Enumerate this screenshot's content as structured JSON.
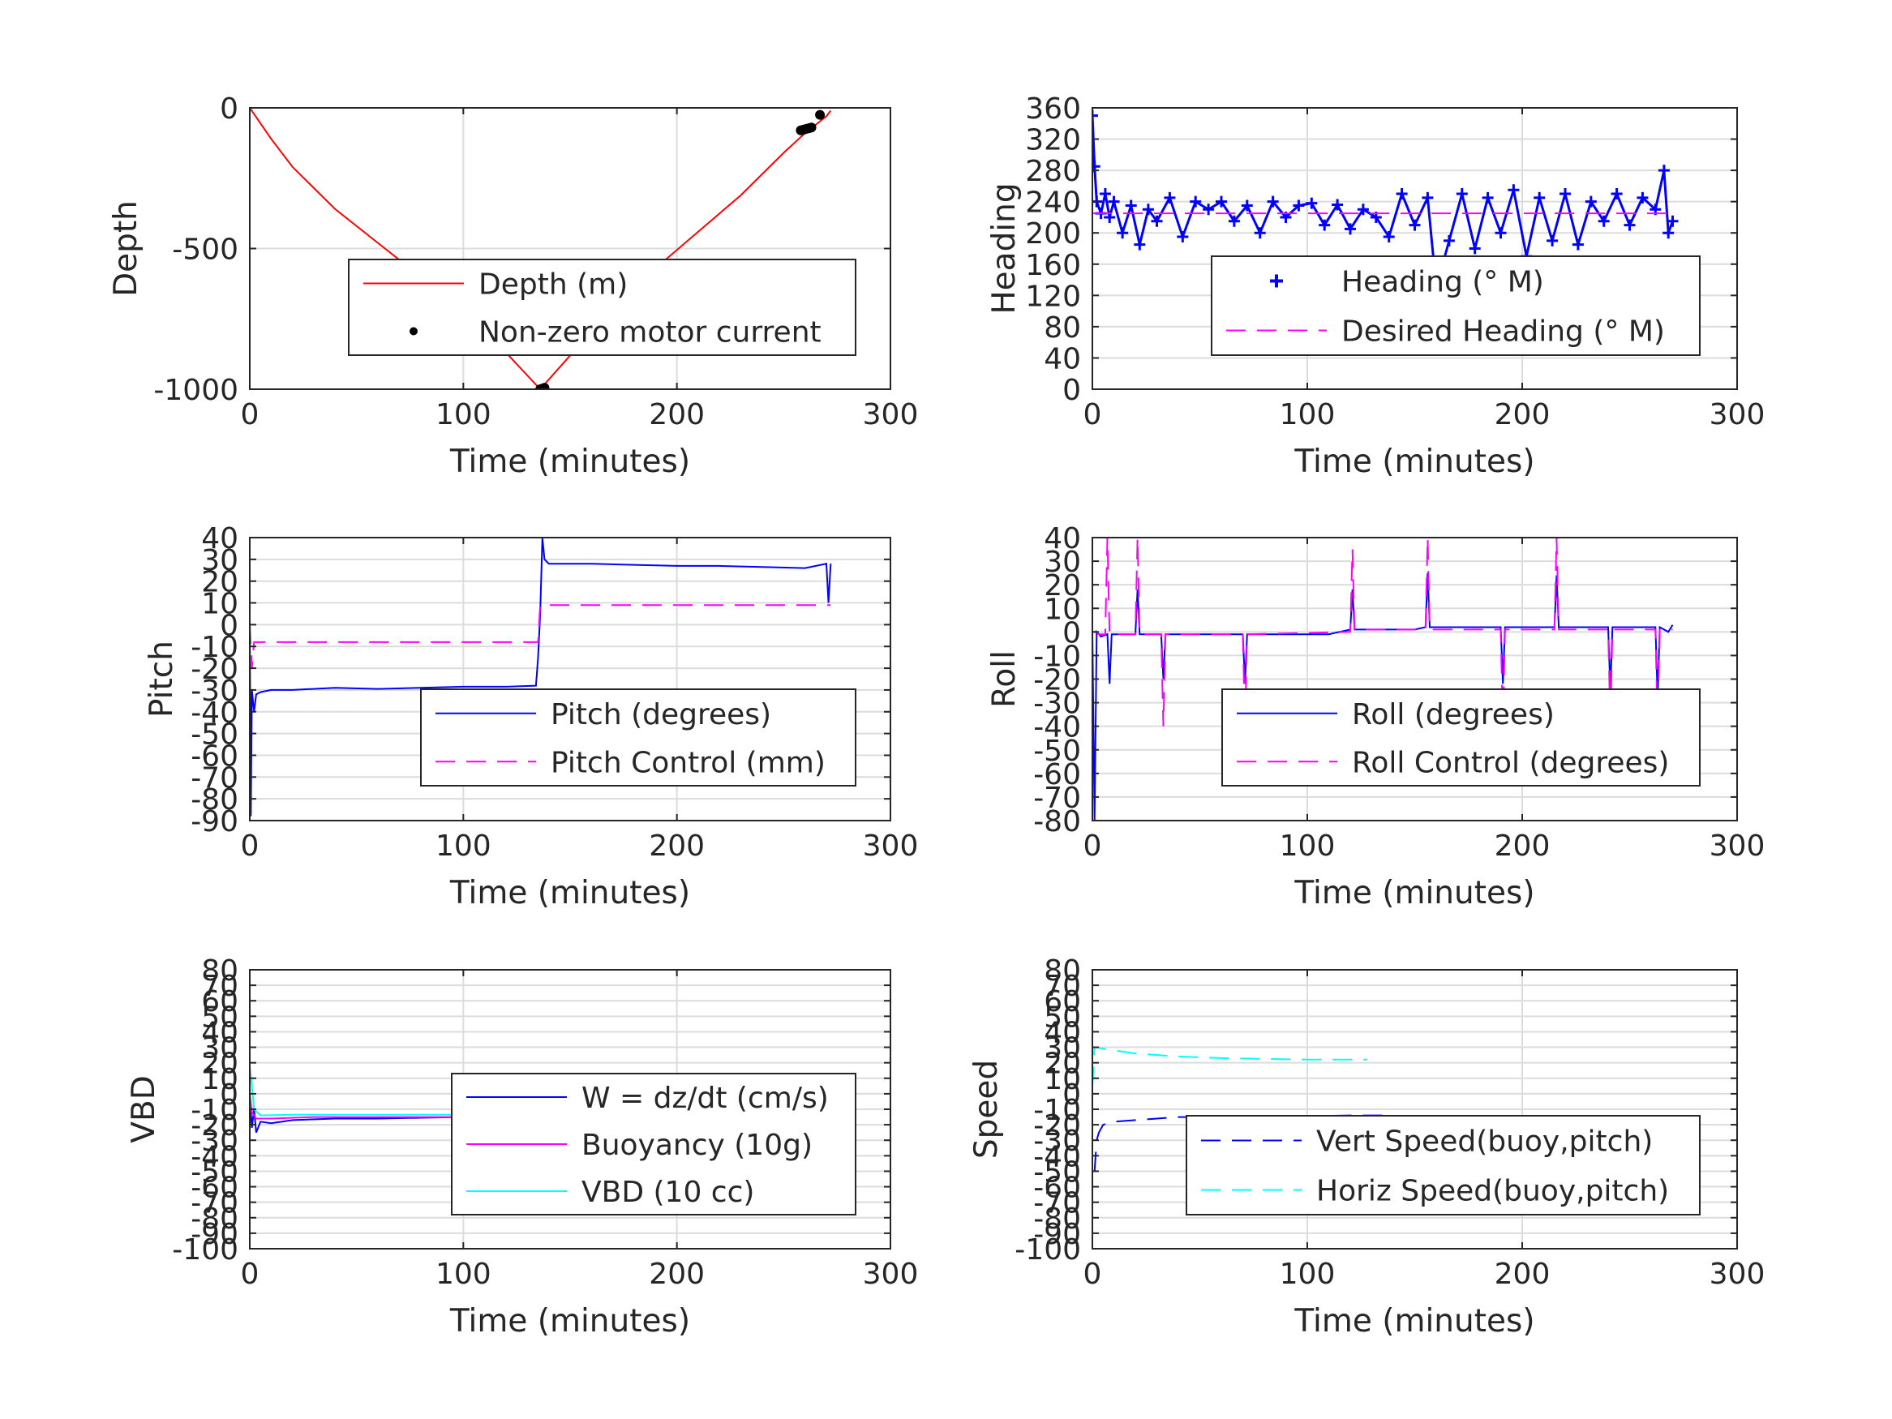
{
  "chart_data": [
    {
      "type": "line",
      "xlabel": "Time (minutes)",
      "ylabel": "Depth",
      "xlim": [
        0,
        300
      ],
      "ylim": [
        -1000,
        0
      ],
      "xticks": [
        "0",
        "100",
        "200",
        "300"
      ],
      "yticks": [
        {
          "v": 0,
          "t": "0"
        },
        {
          "v": -500,
          "t": "-500"
        },
        {
          "v": -1000,
          "t": "-1000"
        }
      ],
      "grid": true,
      "legend_position": "lower-right",
      "series": [
        {
          "name": "Depth (m)",
          "color": "#ff0000",
          "style": "solid",
          "x": [
            0,
            10,
            20,
            40,
            60,
            80,
            100,
            120,
            136,
            150,
            170,
            190,
            210,
            230,
            250,
            260,
            270,
            272
          ],
          "y": [
            0,
            -110,
            -210,
            -360,
            -480,
            -600,
            -730,
            -870,
            -1000,
            -880,
            -720,
            -570,
            -440,
            -310,
            -160,
            -90,
            -30,
            -10
          ]
        },
        {
          "name": "Non-zero motor current",
          "color": "#000000",
          "style": "dot",
          "x": [
            136,
            137,
            138,
            258,
            259,
            260,
            261,
            262,
            263,
            267
          ],
          "y": [
            -1000,
            -998,
            -995,
            -80,
            -78,
            -76,
            -74,
            -72,
            -70,
            -25
          ]
        }
      ]
    },
    {
      "type": "scatter",
      "xlabel": "Time (minutes)",
      "ylabel": "Heading",
      "xlim": [
        0,
        300
      ],
      "ylim": [
        0,
        360
      ],
      "xticks": [
        "0",
        "100",
        "200",
        "300"
      ],
      "yticks": [
        {
          "v": 0,
          "t": "0"
        },
        {
          "v": 40,
          "t": "40"
        },
        {
          "v": 80,
          "t": "80"
        },
        {
          "v": 120,
          "t": "120"
        },
        {
          "v": 160,
          "t": "160"
        },
        {
          "v": 200,
          "t": "200"
        },
        {
          "v": 240,
          "t": "240"
        },
        {
          "v": 280,
          "t": "280"
        },
        {
          "v": 320,
          "t": "320"
        },
        {
          "v": 360,
          "t": "360"
        }
      ],
      "grid": true,
      "legend_position": "lower-right",
      "series": [
        {
          "name": "Heading (° M)",
          "color": "#0000ff",
          "style": "plus",
          "x": [
            0,
            1,
            2,
            4,
            6,
            8,
            10,
            14,
            18,
            22,
            26,
            30,
            36,
            42,
            48,
            54,
            60,
            66,
            72,
            78,
            84,
            90,
            96,
            102,
            108,
            114,
            120,
            126,
            132,
            138,
            144,
            150,
            156,
            160,
            166,
            172,
            178,
            184,
            190,
            196,
            202,
            208,
            214,
            220,
            226,
            232,
            238,
            244,
            250,
            256,
            262,
            266,
            268,
            270
          ],
          "y": [
            350,
            285,
            240,
            225,
            250,
            220,
            240,
            200,
            235,
            185,
            230,
            215,
            245,
            195,
            240,
            230,
            240,
            215,
            235,
            200,
            240,
            220,
            235,
            238,
            210,
            236,
            205,
            230,
            220,
            195,
            250,
            210,
            245,
            130,
            190,
            250,
            180,
            245,
            200,
            255,
            170,
            245,
            190,
            250,
            185,
            240,
            215,
            250,
            210,
            245,
            230,
            280,
            200,
            215
          ]
        },
        {
          "name": "Desired Heading (° M)",
          "color": "#ff00ff",
          "style": "dashed",
          "x": [
            0,
            272
          ],
          "y": [
            225,
            225
          ]
        }
      ]
    },
    {
      "type": "line",
      "xlabel": "Time (minutes)",
      "ylabel": "Pitch",
      "xlim": [
        0,
        300
      ],
      "ylim": [
        -90,
        40
      ],
      "xticks": [
        "0",
        "100",
        "200",
        "300"
      ],
      "yticks": [
        {
          "v": 40,
          "t": "40"
        },
        {
          "v": 30,
          "t": "30"
        },
        {
          "v": 20,
          "t": "20"
        },
        {
          "v": 10,
          "t": "10"
        },
        {
          "v": 0,
          "t": "0"
        },
        {
          "v": -10,
          "t": "-10"
        },
        {
          "v": -20,
          "t": "-20"
        },
        {
          "v": -30,
          "t": "-30"
        },
        {
          "v": -40,
          "t": "-40"
        },
        {
          "v": -50,
          "t": "-50"
        },
        {
          "v": -60,
          "t": "-60"
        },
        {
          "v": -70,
          "t": "-70"
        },
        {
          "v": -80,
          "t": "-80"
        },
        {
          "v": -90,
          "t": "-90"
        }
      ],
      "grid": true,
      "legend_position": "lower-right",
      "series": [
        {
          "name": "Pitch (degrees)",
          "color": "#0000ff",
          "style": "solid",
          "x": [
            0,
            0.5,
            1,
            2,
            3,
            5,
            10,
            20,
            40,
            60,
            80,
            100,
            120,
            134,
            135,
            136,
            137,
            138,
            140,
            160,
            180,
            200,
            220,
            240,
            260,
            270,
            271,
            272
          ],
          "y": [
            0,
            -88,
            -30,
            -40,
            -32,
            -31,
            -30,
            -30,
            -29,
            -29.5,
            -29,
            -28.5,
            -28.5,
            -28,
            -15,
            5,
            40,
            30,
            28,
            28,
            27.5,
            27,
            27,
            26.5,
            26,
            28,
            10,
            28
          ]
        },
        {
          "name": "Pitch Control (mm)",
          "color": "#ff00ff",
          "style": "dashed",
          "x": [
            0,
            1,
            2,
            135,
            136,
            272
          ],
          "y": [
            0,
            -20,
            -8,
            -8,
            9,
            9
          ]
        }
      ]
    },
    {
      "type": "line",
      "xlabel": "Time (minutes)",
      "ylabel": "Roll",
      "xlim": [
        0,
        300
      ],
      "ylim": [
        -80,
        40
      ],
      "xticks": [
        "0",
        "100",
        "200",
        "300"
      ],
      "yticks": [
        {
          "v": 40,
          "t": "40"
        },
        {
          "v": 30,
          "t": "30"
        },
        {
          "v": 20,
          "t": "20"
        },
        {
          "v": 10,
          "t": "10"
        },
        {
          "v": 0,
          "t": "0"
        },
        {
          "v": -10,
          "t": "-10"
        },
        {
          "v": -20,
          "t": "-20"
        },
        {
          "v": -30,
          "t": "-30"
        },
        {
          "v": -40,
          "t": "-40"
        },
        {
          "v": -50,
          "t": "-50"
        },
        {
          "v": -60,
          "t": "-60"
        },
        {
          "v": -70,
          "t": "-70"
        },
        {
          "v": -80,
          "t": "-80"
        }
      ],
      "grid": true,
      "legend_position": "lower-right",
      "series": [
        {
          "name": "Roll (degrees)",
          "color": "#0000ff",
          "style": "solid",
          "x": [
            0,
            1,
            2,
            3,
            4,
            7,
            8,
            9,
            20,
            21,
            22,
            32,
            33,
            34,
            60,
            70,
            71,
            72,
            110,
            120,
            121,
            122,
            150,
            155,
            156,
            157,
            180,
            190,
            191,
            192,
            210,
            215,
            216,
            217,
            230,
            240,
            241,
            242,
            258,
            262,
            263,
            264,
            268,
            270
          ],
          "y": [
            0,
            -80,
            0,
            -1,
            -2,
            -1,
            -22,
            -1,
            -1,
            18,
            -1,
            -1,
            -20,
            -1,
            -1,
            -1,
            -22,
            -1,
            -1,
            1,
            18,
            1,
            1,
            2,
            25,
            2,
            2,
            2,
            -22,
            2,
            2,
            2,
            24,
            2,
            2,
            2,
            -25,
            2,
            2,
            2,
            -28,
            2,
            0,
            3
          ]
        },
        {
          "name": "Roll Control (degrees)",
          "color": "#ff00ff",
          "style": "dashed",
          "x": [
            0,
            2,
            3,
            6,
            7,
            8,
            20,
            21,
            22,
            32,
            33,
            34,
            70,
            71,
            72,
            120,
            121,
            122,
            155,
            156,
            157,
            190,
            191,
            192,
            215,
            216,
            217,
            240,
            241,
            242,
            262,
            263,
            264,
            270
          ],
          "y": [
            0,
            0,
            -1,
            -1,
            40,
            -1,
            -1,
            40,
            -1,
            -1,
            -40,
            -1,
            -1,
            -40,
            -1,
            0,
            35,
            1,
            1,
            40,
            1,
            1,
            -40,
            1,
            1,
            40,
            1,
            1,
            -40,
            1,
            1,
            -40,
            1,
            1
          ]
        }
      ]
    },
    {
      "type": "line",
      "xlabel": "Time (minutes)",
      "ylabel": "VBD",
      "xlim": [
        0,
        300
      ],
      "ylim": [
        -100,
        80
      ],
      "xticks": [
        "0",
        "100",
        "200",
        "300"
      ],
      "yticks": [
        {
          "v": 80,
          "t": "80"
        },
        {
          "v": 70,
          "t": "70"
        },
        {
          "v": 60,
          "t": "60"
        },
        {
          "v": 50,
          "t": "50"
        },
        {
          "v": 40,
          "t": "40"
        },
        {
          "v": 30,
          "t": "30"
        },
        {
          "v": 20,
          "t": "20"
        },
        {
          "v": 10,
          "t": "10"
        },
        {
          "v": 0,
          "t": "0"
        },
        {
          "v": -10,
          "t": "-10"
        },
        {
          "v": -20,
          "t": "-20"
        },
        {
          "v": -30,
          "t": "-30"
        },
        {
          "v": -40,
          "t": "-40"
        },
        {
          "v": -50,
          "t": "-50"
        },
        {
          "v": -60,
          "t": "-60"
        },
        {
          "v": -70,
          "t": "-70"
        },
        {
          "v": -80,
          "t": "-80"
        },
        {
          "v": -90,
          "t": "-90"
        },
        {
          "v": -100,
          "t": "-100"
        }
      ],
      "grid": true,
      "legend_position": "lower-right",
      "series": [
        {
          "name": "W = dz/dt (cm/s)",
          "color": "#0000ff",
          "style": "solid",
          "x": [
            0,
            1,
            2,
            3,
            5,
            10,
            20,
            40,
            60,
            80,
            100,
            120,
            134,
            135,
            136,
            138,
            140,
            160,
            180,
            200,
            220,
            240,
            255,
            258,
            262,
            266,
            270,
            272
          ],
          "y": [
            0,
            -22,
            -10,
            -25,
            -18,
            -19,
            -17,
            -16,
            -16,
            -15.5,
            -15,
            -15,
            -15,
            -5,
            5,
            10,
            10,
            10,
            9,
            8.5,
            8,
            8,
            7.5,
            2,
            10,
            3,
            9,
            5
          ]
        },
        {
          "name": "Buoyancy (10g)",
          "color": "#ff00ff",
          "style": "solid",
          "x": [
            0,
            1,
            3,
            10,
            30,
            60,
            100,
            135,
            136,
            138,
            180,
            230,
            272
          ],
          "y": [
            0,
            -12,
            -16,
            -16,
            -15,
            -15,
            -15,
            -15,
            5,
            6.5,
            6.5,
            6.5,
            6.5
          ]
        },
        {
          "name": "VBD (10 cc)",
          "color": "#00ffff",
          "style": "solid",
          "x": [
            0,
            1,
            2,
            5,
            20,
            60,
            100,
            135,
            136,
            138,
            180,
            230,
            258,
            262,
            268,
            272
          ],
          "y": [
            18,
            5,
            -10,
            -14,
            -13.5,
            -13.5,
            -13.5,
            -13.5,
            6,
            6.5,
            6.5,
            6.5,
            6.5,
            9,
            12,
            12
          ]
        }
      ]
    },
    {
      "type": "line",
      "xlabel": "Time (minutes)",
      "ylabel": "Speed",
      "xlim": [
        0,
        300
      ],
      "ylim": [
        -100,
        80
      ],
      "xticks": [
        "0",
        "100",
        "200",
        "300"
      ],
      "yticks": [
        {
          "v": 80,
          "t": "80"
        },
        {
          "v": 70,
          "t": "70"
        },
        {
          "v": 60,
          "t": "60"
        },
        {
          "v": 50,
          "t": "50"
        },
        {
          "v": 40,
          "t": "40"
        },
        {
          "v": 30,
          "t": "30"
        },
        {
          "v": 20,
          "t": "20"
        },
        {
          "v": 10,
          "t": "10"
        },
        {
          "v": 0,
          "t": "0"
        },
        {
          "v": -10,
          "t": "-10"
        },
        {
          "v": -20,
          "t": "-20"
        },
        {
          "v": -30,
          "t": "-30"
        },
        {
          "v": -40,
          "t": "-40"
        },
        {
          "v": -50,
          "t": "-50"
        },
        {
          "v": -60,
          "t": "-60"
        },
        {
          "v": -70,
          "t": "-70"
        },
        {
          "v": -80,
          "t": "-80"
        },
        {
          "v": -90,
          "t": "-90"
        },
        {
          "v": -100,
          "t": "-100"
        }
      ],
      "grid": true,
      "legend_position": "lower-right",
      "series": [
        {
          "name": "Vert Speed(buoy,pitch)",
          "color": "#0000ff",
          "style": "dashed",
          "x": [
            1,
            2,
            3,
            5,
            10,
            20,
            40,
            60,
            80,
            100,
            120,
            135
          ],
          "y": [
            -50,
            -30,
            -25,
            -20,
            -18,
            -17,
            -15,
            -15,
            -14.5,
            -14.5,
            -14,
            -14
          ]
        },
        {
          "name": "Horiz Speed(buoy,pitch)",
          "color": "#00ffff",
          "style": "dashed",
          "x": [
            0,
            1,
            2,
            5,
            10,
            20,
            40,
            60,
            80,
            100,
            120,
            128
          ],
          "y": [
            5,
            30,
            30,
            29,
            28,
            26,
            24,
            23,
            22.5,
            22,
            22,
            22
          ]
        }
      ]
    }
  ]
}
